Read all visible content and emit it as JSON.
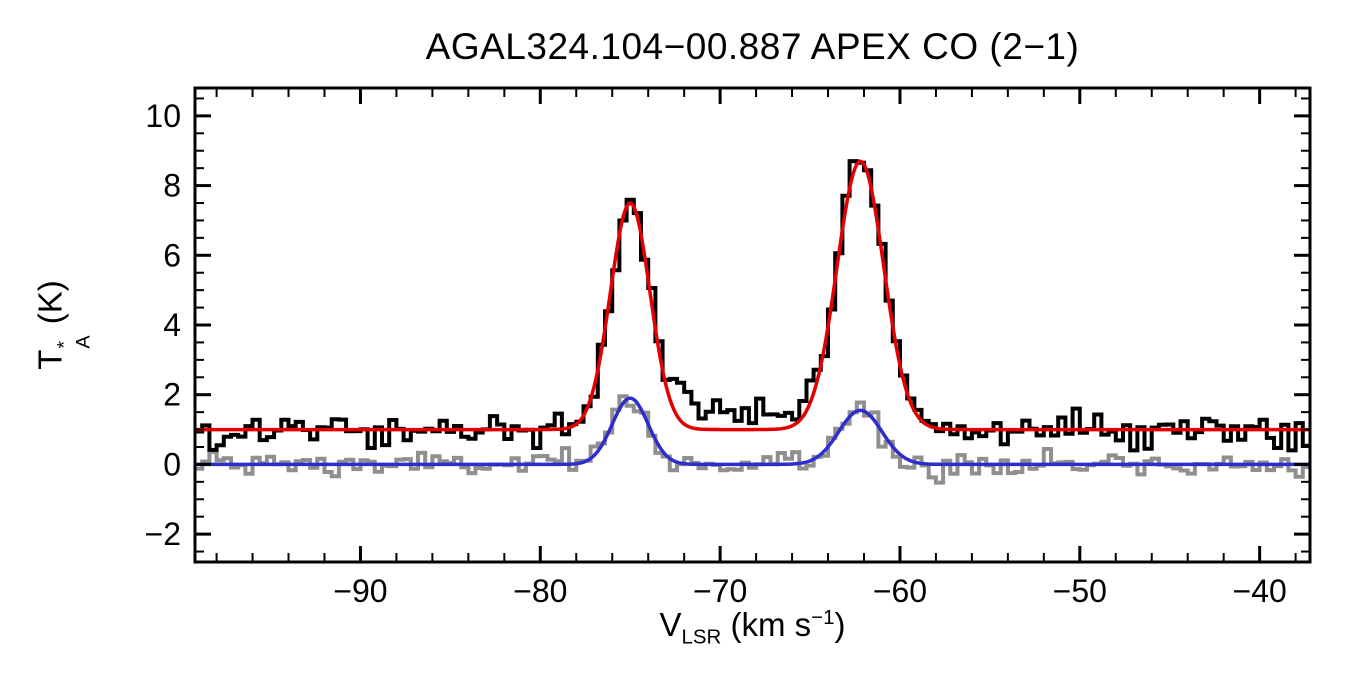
{
  "figure": {
    "title": "AGAL324.104−00.887  APEX CO (2−1)"
  },
  "labels": {
    "y_main": "T",
    "y_sup": "*",
    "y_sub": "A",
    "y_unit": " (K)",
    "x_main": "V",
    "x_sub": "LSR",
    "x_unit_pre": " (km s",
    "x_sup": "−1",
    "x_unit_post": ")"
  },
  "chart_data": {
    "type": "line",
    "title": "AGAL324.104−00.887  APEX CO (2−1)",
    "xlabel": "V_LSR (km s^-1)",
    "ylabel": "T_A^* (K)",
    "xlim": [
      -99.2,
      -37.2
    ],
    "ylim": [
      -2.8,
      10.8
    ],
    "x_ticks": [
      -90,
      -80,
      -70,
      -60,
      -50,
      -40
    ],
    "y_ticks": [
      -2,
      0,
      2,
      4,
      6,
      8,
      10
    ],
    "x_minor_step": 2,
    "y_minor_step": 0.5,
    "grid": false,
    "legend": "none",
    "channel_width": 0.4,
    "noise_seed": 1234,
    "colors": {
      "spectrum_black": "#000000",
      "spectrum_gray": "#8f8f8f",
      "fit_red": "#e30000",
      "fit_blue": "#2d2dcd"
    },
    "series": [
      {
        "name": "spectrum-gray",
        "style": "histogram",
        "color_key": "spectrum_gray",
        "line_width": 4,
        "baseline": 0.0,
        "noise_sigma": 0.19,
        "components": [
          {
            "center": -75.0,
            "sigma": 1.0,
            "amplitude": 1.85
          },
          {
            "center": -62.2,
            "sigma": 1.2,
            "amplitude": 1.55
          }
        ]
      },
      {
        "name": "spectrum-black",
        "style": "histogram",
        "color_key": "spectrum_black",
        "line_width": 4,
        "baseline": 1.0,
        "noise_sigma": 0.22,
        "components": [
          {
            "center": -75.0,
            "sigma": 1.1,
            "amplitude": 6.5
          },
          {
            "center": -62.2,
            "sigma": 1.3,
            "amplitude": 7.7
          },
          {
            "center": -67.5,
            "sigma": 3.2,
            "amplitude": 0.55
          },
          {
            "center": -72.5,
            "sigma": 0.8,
            "amplitude": 0.6
          }
        ]
      },
      {
        "name": "fit-blue",
        "style": "smooth",
        "color_key": "fit_blue",
        "line_width": 3.5,
        "baseline": 0.0,
        "noise_sigma": 0,
        "components": [
          {
            "center": -75.0,
            "sigma": 1.0,
            "amplitude": 1.9
          },
          {
            "center": -62.2,
            "sigma": 1.2,
            "amplitude": 1.55
          }
        ]
      },
      {
        "name": "fit-red",
        "style": "smooth",
        "color_key": "fit_red",
        "line_width": 3.5,
        "baseline": 1.0,
        "noise_sigma": 0,
        "components": [
          {
            "center": -75.0,
            "sigma": 1.1,
            "amplitude": 6.5
          },
          {
            "center": -62.2,
            "sigma": 1.3,
            "amplitude": 7.7
          }
        ]
      }
    ]
  }
}
